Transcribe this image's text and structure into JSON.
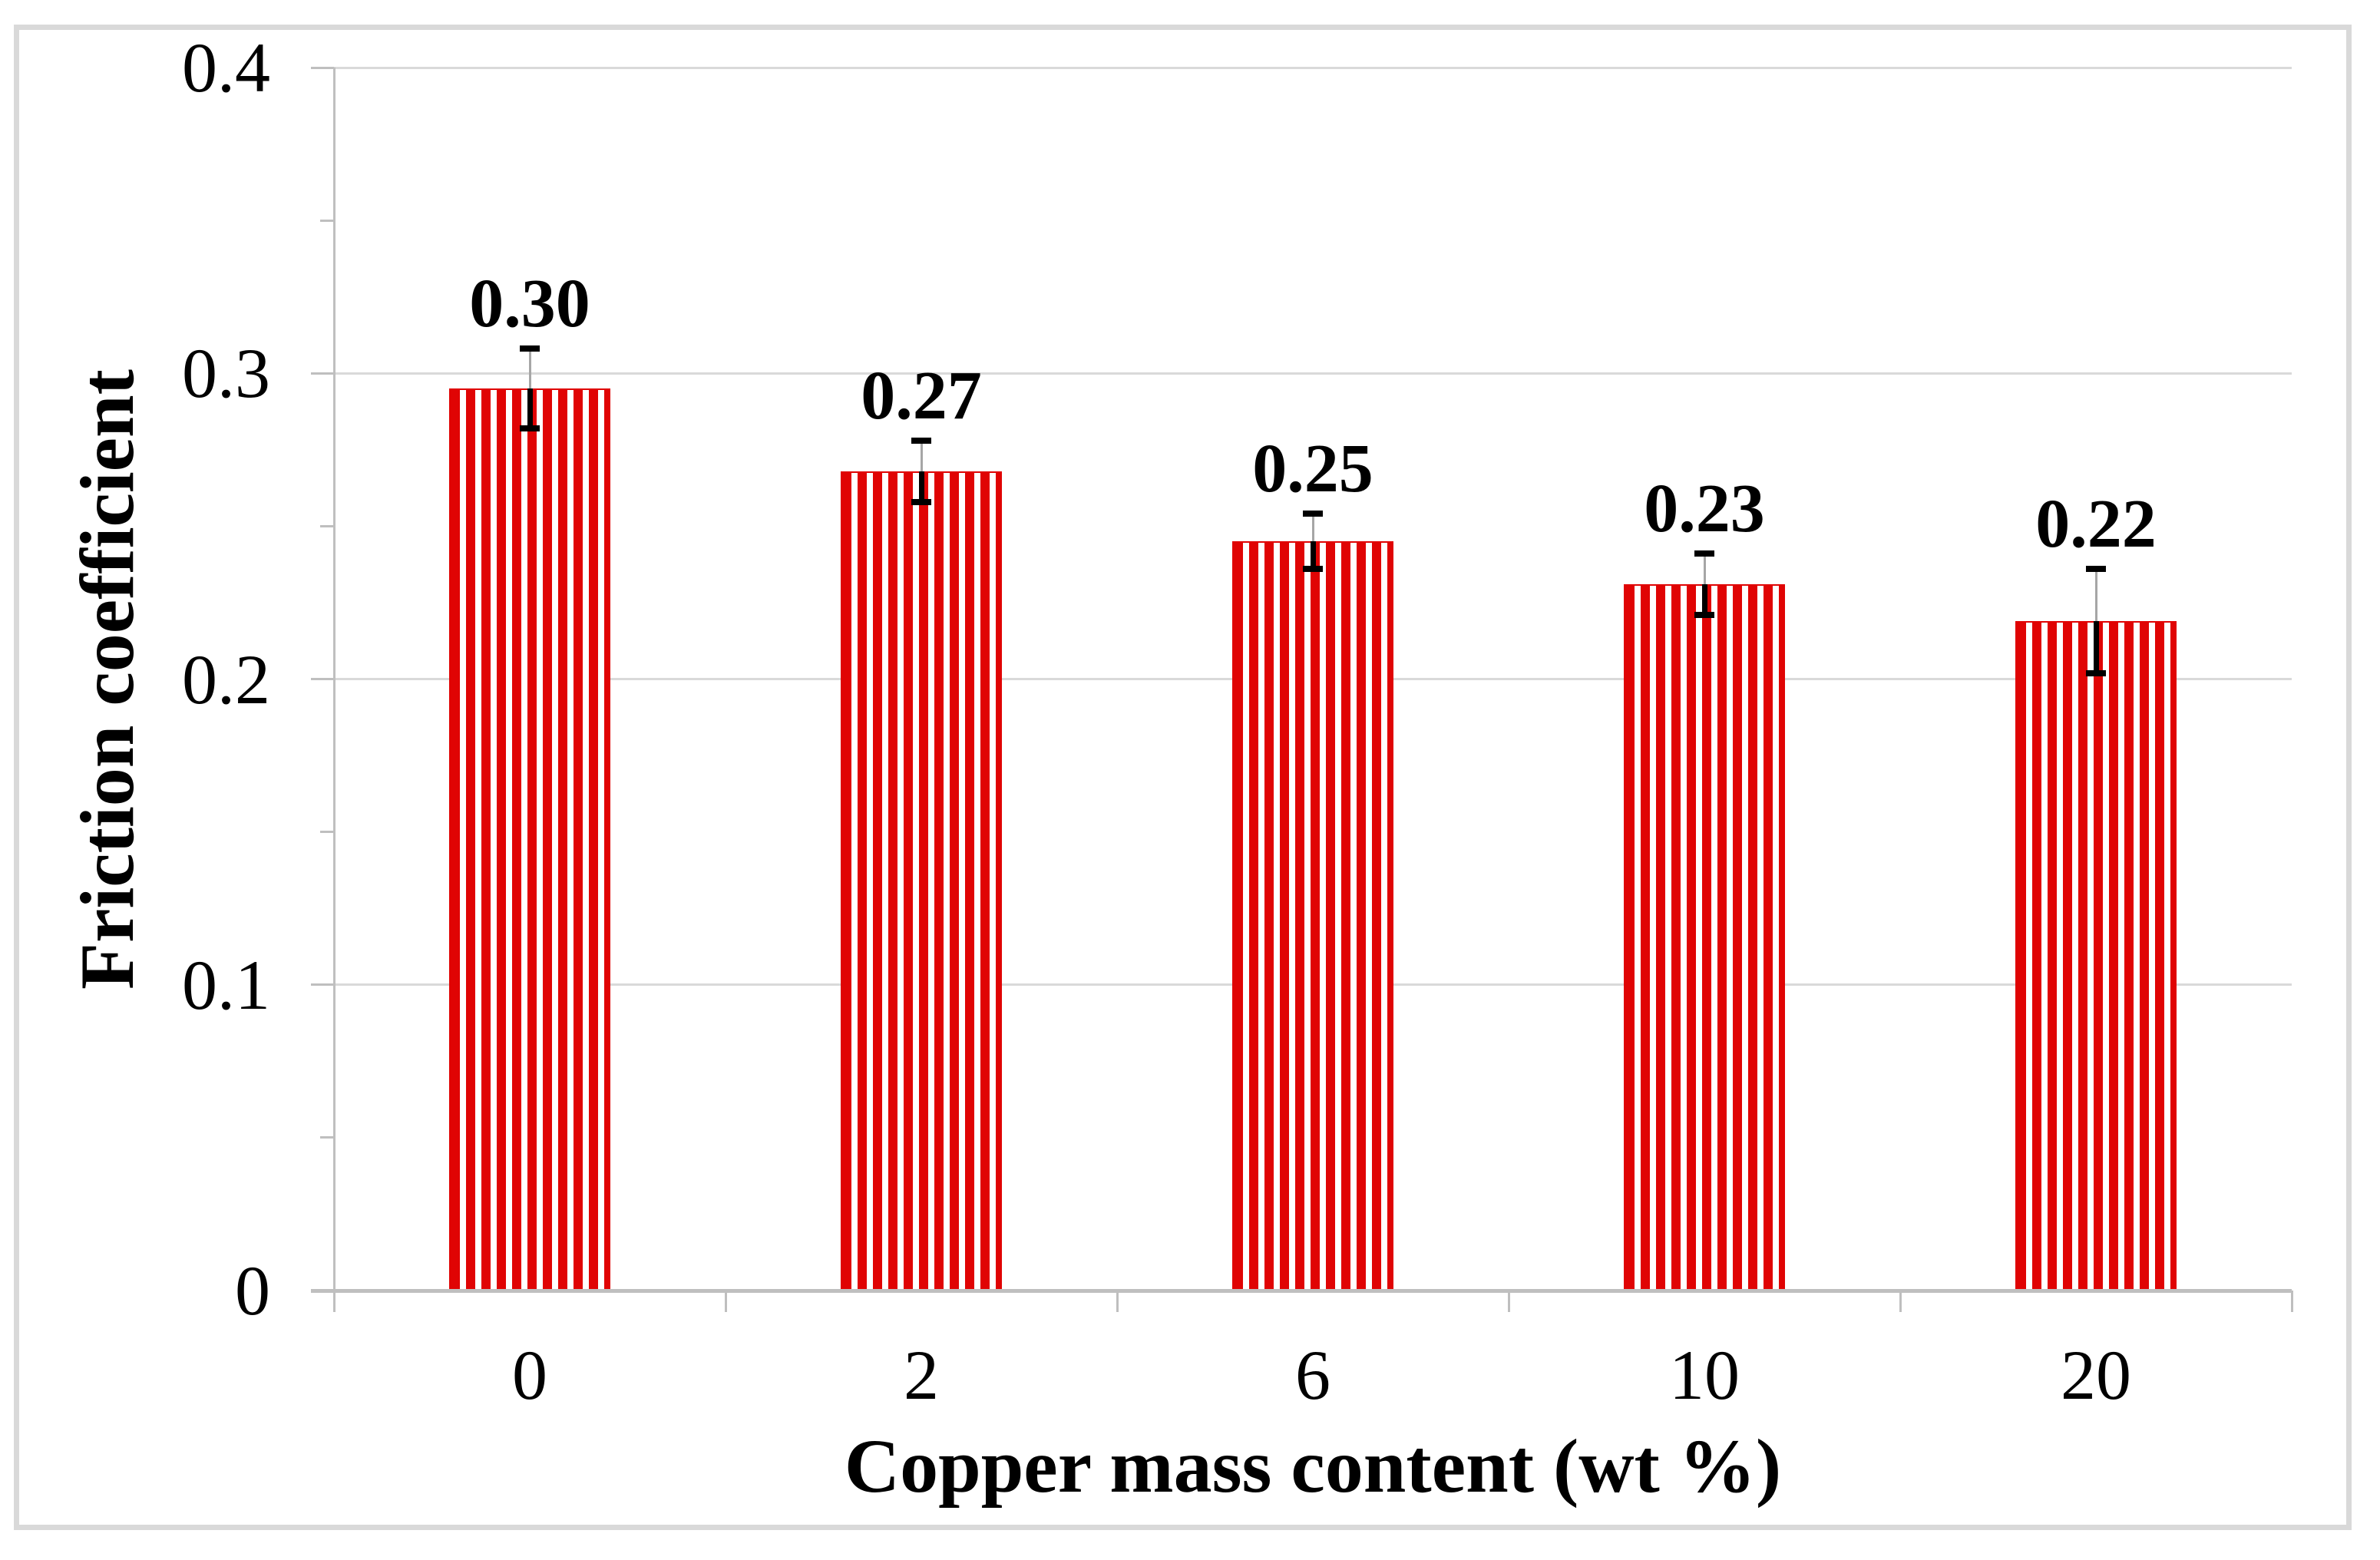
{
  "figure": {
    "background_color": "#ffffff",
    "frame_color": "#d9d9d9"
  },
  "chart_data": {
    "type": "bar",
    "title": "",
    "xlabel": "Copper mass content (wt %)",
    "ylabel": "Friction coefficient",
    "categories": [
      "0",
      "2",
      "6",
      "10",
      "20"
    ],
    "values": [
      0.295,
      0.268,
      0.245,
      0.231,
      0.219
    ],
    "bar_labels": [
      "0.30",
      "0.27",
      "0.25",
      "0.23",
      "0.22"
    ],
    "error_bars": [
      0.013,
      0.01,
      0.009,
      0.01,
      0.017
    ],
    "ylim": [
      0,
      0.4
    ],
    "y_ticks": [
      {
        "label": "0.4",
        "value": 0.4
      },
      {
        "label": "0.3",
        "value": 0.3
      },
      {
        "label": "0.2",
        "value": 0.2
      },
      {
        "label": "0.1",
        "value": 0.1
      },
      {
        "label": "0",
        "value": 0
      }
    ],
    "y_minor_tick_step": 0.05,
    "grid": "horizontal-major-only",
    "legend": "none",
    "colors": {
      "bar_stripe": "#e00404",
      "bar_fill_background": "#ffffff",
      "gridline": "#d9d9d9",
      "axis_line": "#bfbfbf",
      "error_whisker_upper": "#a6a6a6",
      "error_whisker_lower": "#000000",
      "error_cap": "#000000",
      "text": "#000000"
    }
  }
}
